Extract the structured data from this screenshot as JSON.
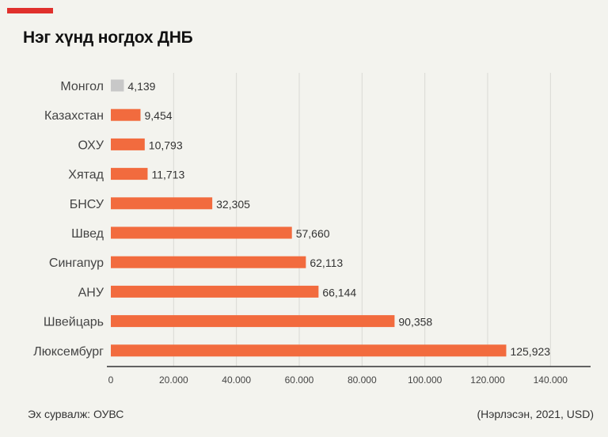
{
  "header": {
    "title": "Нэг хүнд ногдох ДНБ"
  },
  "footer": {
    "source": "Эх сурвалж: ОУВС",
    "note": "(Нэрлэсэн, 2021, USD)"
  },
  "colors": {
    "accent": "#e0302c",
    "bar": "#f26b3e",
    "highlight_bar": "#c8c8c8",
    "grid": "#d9d9d4",
    "axis": "#333333"
  },
  "chart_data": {
    "type": "bar",
    "orientation": "horizontal",
    "title": "Нэг хүнд ногдох ДНБ",
    "categories": [
      "Монгол",
      "Казахстан",
      "ОХУ",
      "Хятад",
      "БНСУ",
      "Швед",
      "Сингапур",
      "АНУ",
      "Швейцарь",
      "Люксембург"
    ],
    "values": [
      4139,
      9454,
      10793,
      11713,
      32305,
      57660,
      62113,
      66144,
      90358,
      125923
    ],
    "value_labels": [
      "4,139",
      "9,454",
      "10,793",
      "11,713",
      "32,305",
      "57,660",
      "62,113",
      "66,144",
      "90,358",
      "125,923"
    ],
    "highlight_category": "Монгол",
    "xlim": [
      0,
      150000
    ],
    "xticks": [
      0,
      20000,
      40000,
      60000,
      80000,
      100000,
      120000,
      140000
    ],
    "xtick_labels": [
      "0",
      "20.000",
      "40.000",
      "60.000",
      "80.000",
      "100.000",
      "120.000",
      "140.000"
    ],
    "grid": true,
    "xlabel": "",
    "ylabel": ""
  }
}
